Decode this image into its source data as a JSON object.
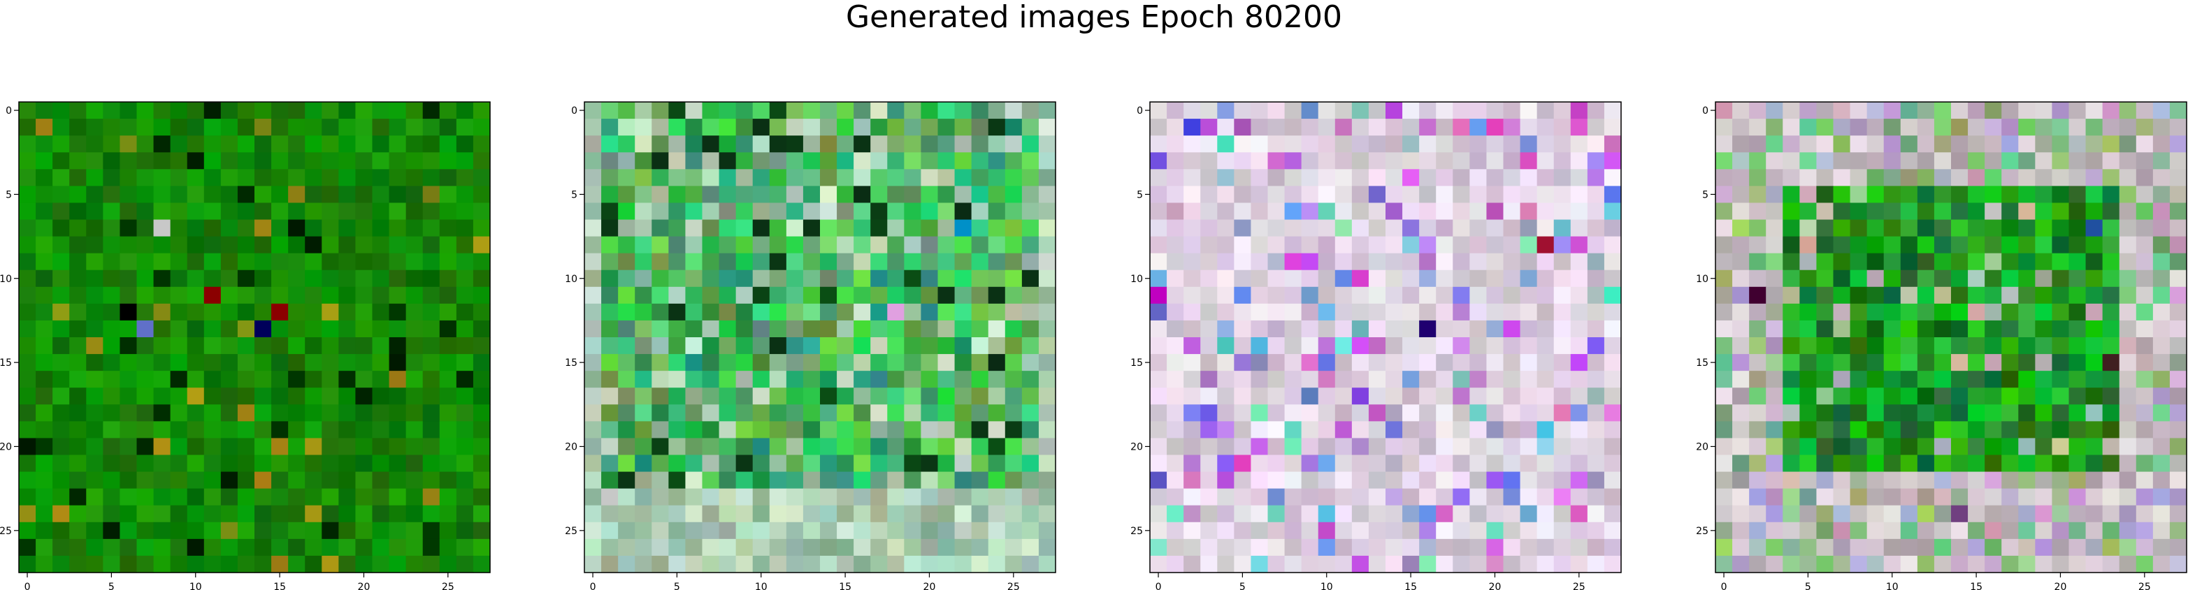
{
  "figure": {
    "title": "Generated images Epoch 80200"
  },
  "chart_data": [
    {
      "type": "heatmap",
      "panel": 1,
      "grid_size": 28,
      "palette": "dark-green",
      "xlim": [
        -0.5,
        27.5
      ],
      "ylim": [
        27.5,
        -0.5
      ],
      "x_ticks": [
        0,
        5,
        10,
        15,
        20,
        25
      ],
      "y_ticks": [
        0,
        5,
        10,
        15,
        20,
        25
      ],
      "highlights": [
        {
          "x": 11,
          "y": 11,
          "color": "#8b0000"
        },
        {
          "x": 14,
          "y": 13,
          "color": "#00005a"
        },
        {
          "x": 15,
          "y": 12,
          "color": "#8b0000"
        },
        {
          "x": 8,
          "y": 7,
          "color": "#c8c8c8"
        },
        {
          "x": 7,
          "y": 13,
          "color": "#6070c8"
        },
        {
          "x": 6,
          "y": 12,
          "color": "#000000"
        }
      ]
    },
    {
      "type": "heatmap",
      "panel": 2,
      "grid_size": 28,
      "palette": "mixed-green",
      "xlim": [
        -0.5,
        27.5
      ],
      "ylim": [
        27.5,
        -0.5
      ],
      "x_ticks": [
        0,
        5,
        10,
        15,
        20,
        25
      ],
      "y_ticks": [
        0,
        5,
        10,
        15,
        20,
        25
      ],
      "highlights": [
        {
          "x": 22,
          "y": 7,
          "color": "#0090c8"
        },
        {
          "x": 18,
          "y": 12,
          "color": "#e0a0e0"
        },
        {
          "x": 13,
          "y": 14,
          "color": "#30b0a0"
        }
      ]
    },
    {
      "type": "heatmap",
      "panel": 3,
      "grid_size": 28,
      "palette": "pastel-pink",
      "xlim": [
        -0.5,
        27.5
      ],
      "ylim": [
        27.5,
        -0.5
      ],
      "x_ticks": [
        0,
        5,
        10,
        15,
        20,
        25
      ],
      "y_ticks": [
        0,
        5,
        10,
        15,
        20,
        25
      ],
      "highlights": [
        {
          "x": 0,
          "y": 11,
          "color": "#c000c0"
        },
        {
          "x": 16,
          "y": 13,
          "color": "#200070"
        },
        {
          "x": 23,
          "y": 8,
          "color": "#a01030"
        },
        {
          "x": 12,
          "y": 17,
          "color": "#8040e0"
        },
        {
          "x": 2,
          "y": 1,
          "color": "#4040e0"
        }
      ]
    },
    {
      "type": "heatmap",
      "panel": 4,
      "grid_size": 28,
      "palette": "green-frame",
      "xlim": [
        -0.5,
        27.5
      ],
      "ylim": [
        27.5,
        -0.5
      ],
      "x_ticks": [
        0,
        5,
        10,
        15,
        20,
        25
      ],
      "y_ticks": [
        0,
        5,
        10,
        15,
        20,
        25
      ],
      "highlights": [
        {
          "x": 2,
          "y": 11,
          "color": "#400030"
        },
        {
          "x": 22,
          "y": 7,
          "color": "#2050a0"
        },
        {
          "x": 23,
          "y": 15,
          "color": "#402020"
        },
        {
          "x": 14,
          "y": 24,
          "color": "#704080"
        }
      ]
    }
  ]
}
